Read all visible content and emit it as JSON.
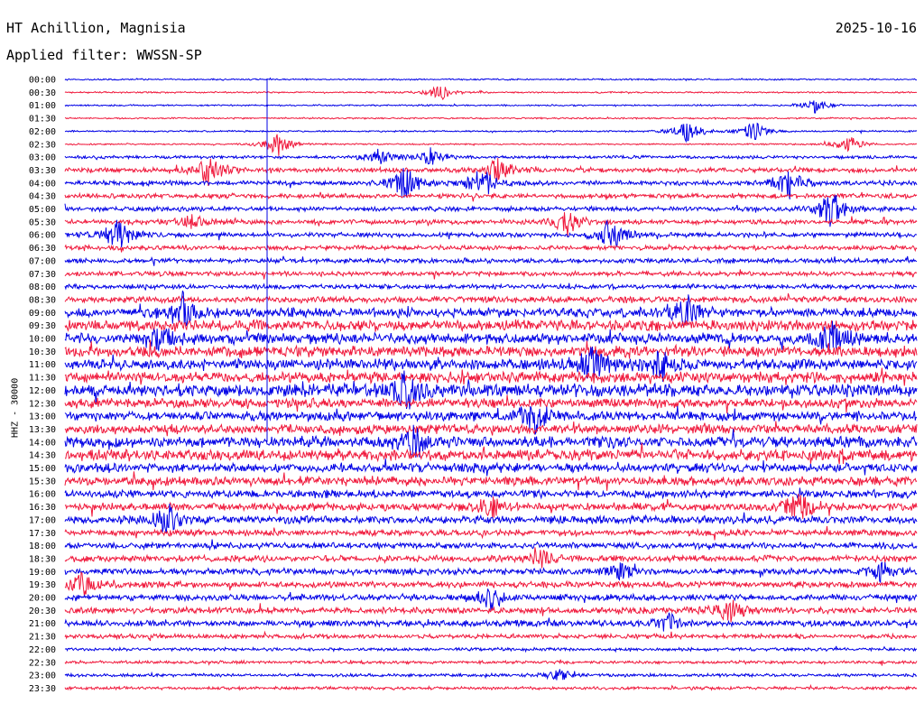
{
  "header": {
    "station": "HT Achillion, Magnisia",
    "date": "2025-10-16",
    "filter": "Applied filter: WWSSN-SP"
  },
  "channel_label": "HHZ - 30000",
  "chart_data": {
    "type": "line",
    "title": "HT Achillion, Magnisia",
    "subtitle": "Applied filter: WWSSN-SP",
    "ylabel": "HHZ - 30000",
    "xlabel": "",
    "grid": false,
    "colors": {
      "even_rows": "#0000e6",
      "odd_rows": "#f0193c"
    },
    "row_labels": [
      "00:00",
      "00:30",
      "01:00",
      "01:30",
      "02:00",
      "02:30",
      "03:00",
      "03:30",
      "04:00",
      "04:30",
      "05:00",
      "05:30",
      "06:00",
      "06:30",
      "07:00",
      "07:30",
      "08:00",
      "08:30",
      "09:00",
      "09:30",
      "10:00",
      "10:30",
      "11:00",
      "11:30",
      "12:00",
      "12:30",
      "13:00",
      "13:30",
      "14:00",
      "14:30",
      "15:00",
      "15:30",
      "16:00",
      "16:30",
      "17:00",
      "17:30",
      "18:00",
      "18:30",
      "19:00",
      "19:30",
      "20:00",
      "20:30",
      "21:00",
      "21:30",
      "22:00",
      "22:30",
      "23:00",
      "23:30"
    ],
    "noise_level": [
      1,
      1,
      1,
      1,
      1,
      1,
      2,
      3,
      3,
      3,
      3,
      3,
      3,
      3,
      3,
      3,
      3,
      4,
      6,
      7,
      7,
      7,
      7,
      7,
      8,
      6,
      6,
      6,
      7,
      7,
      6,
      6,
      5,
      5,
      5,
      4,
      4,
      4,
      4,
      4,
      4,
      4,
      4,
      3,
      2,
      2,
      2,
      2
    ],
    "events": [
      {
        "row": 1,
        "x": 0.44,
        "amp": 10
      },
      {
        "row": 2,
        "x": 0.88,
        "amp": 8
      },
      {
        "row": 4,
        "x": 0.73,
        "amp": 14
      },
      {
        "row": 4,
        "x": 0.81,
        "amp": 12
      },
      {
        "row": 5,
        "x": 0.25,
        "amp": 14
      },
      {
        "row": 5,
        "x": 0.92,
        "amp": 10
      },
      {
        "row": 6,
        "x": 0.37,
        "amp": 10
      },
      {
        "row": 6,
        "x": 0.43,
        "amp": 10
      },
      {
        "row": 7,
        "x": 0.17,
        "amp": 18
      },
      {
        "row": 7,
        "x": 0.51,
        "amp": 16
      },
      {
        "row": 8,
        "x": 0.4,
        "amp": 20
      },
      {
        "row": 8,
        "x": 0.49,
        "amp": 22
      },
      {
        "row": 8,
        "x": 0.85,
        "amp": 20
      },
      {
        "row": 10,
        "x": 0.9,
        "amp": 24
      },
      {
        "row": 11,
        "x": 0.15,
        "amp": 10
      },
      {
        "row": 11,
        "x": 0.59,
        "amp": 16
      },
      {
        "row": 12,
        "x": 0.06,
        "amp": 24
      },
      {
        "row": 12,
        "x": 0.64,
        "amp": 20
      },
      {
        "row": 18,
        "x": 0.14,
        "amp": 24
      },
      {
        "row": 18,
        "x": 0.73,
        "amp": 18
      },
      {
        "row": 20,
        "x": 0.11,
        "amp": 14
      },
      {
        "row": 20,
        "x": 0.9,
        "amp": 20
      },
      {
        "row": 22,
        "x": 0.62,
        "amp": 22
      },
      {
        "row": 22,
        "x": 0.7,
        "amp": 18
      },
      {
        "row": 24,
        "x": 0.4,
        "amp": 22
      },
      {
        "row": 26,
        "x": 0.55,
        "amp": 22
      },
      {
        "row": 28,
        "x": 0.41,
        "amp": 16
      },
      {
        "row": 33,
        "x": 0.5,
        "amp": 12
      },
      {
        "row": 33,
        "x": 0.86,
        "amp": 18
      },
      {
        "row": 34,
        "x": 0.12,
        "amp": 20
      },
      {
        "row": 37,
        "x": 0.56,
        "amp": 12
      },
      {
        "row": 38,
        "x": 0.65,
        "amp": 10
      },
      {
        "row": 38,
        "x": 0.96,
        "amp": 12
      },
      {
        "row": 39,
        "x": 0.02,
        "amp": 14
      },
      {
        "row": 40,
        "x": 0.5,
        "amp": 14
      },
      {
        "row": 41,
        "x": 0.78,
        "amp": 12
      },
      {
        "row": 42,
        "x": 0.71,
        "amp": 10
      },
      {
        "row": 46,
        "x": 0.58,
        "amp": 8
      }
    ]
  }
}
